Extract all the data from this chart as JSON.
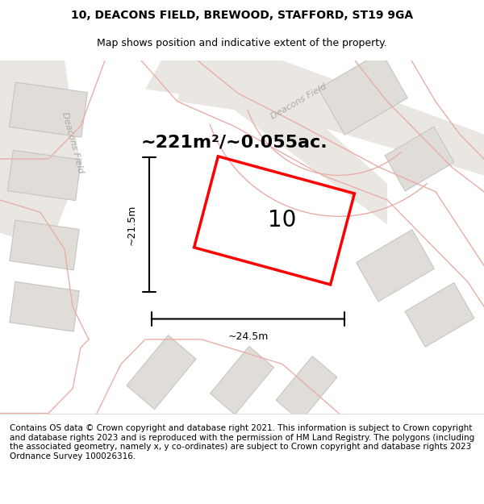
{
  "title": "10, DEACONS FIELD, BREWOOD, STAFFORD, ST19 9GA",
  "subtitle": "Map shows position and indicative extent of the property.",
  "area_text": "~221m²/~0.055ac.",
  "house_number": "10",
  "dim_width": "~24.5m",
  "dim_height": "~21.5m",
  "footer": "Contains OS data © Crown copyright and database right 2021. This information is subject to Crown copyright and database rights 2023 and is reproduced with the permission of HM Land Registry. The polygons (including the associated geometry, namely x, y co-ordinates) are subject to Crown copyright and database rights 2023 Ordnance Survey 100026316.",
  "bg_color": "#f2f0ed",
  "plot_color": "#ff0000",
  "road_line_color": "#e8aea8",
  "street_label": "Deacons Field",
  "street_label2": "Deacons Field",
  "title_fontsize": 10,
  "subtitle_fontsize": 9,
  "area_fontsize": 16,
  "number_fontsize": 20,
  "footer_fontsize": 7.5
}
